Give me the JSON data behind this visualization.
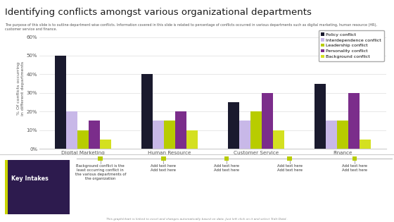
{
  "title": "Identifying conflicts amongst various organizational departments",
  "subtitle": "The purpose of this slide is to outline department wise conflicts. Information covered in this slide is related to percentage of conflicts occurred in various departments such as digital marketing, human resource (HR), customer service and finance.",
  "ylabel": "% Of conflicts occurring\nin different departments",
  "categories": [
    "Digital Marketing",
    "Human Resource",
    "Customer Service",
    "Finance"
  ],
  "series": {
    "Policy conflict": [
      50,
      40,
      25,
      35
    ],
    "Interdependence conflict": [
      20,
      15,
      15,
      15
    ],
    "Leadership conflict": [
      10,
      15,
      20,
      15
    ],
    "Personality conflict": [
      15,
      20,
      30,
      30
    ],
    "Background conflict": [
      5,
      10,
      10,
      5
    ]
  },
  "colors": {
    "Policy conflict": "#1a1a2e",
    "Interdependence conflict": "#c8b8e8",
    "Leadership conflict": "#b8cc00",
    "Personality conflict": "#7b2d8b",
    "Background conflict": "#d4e020"
  },
  "ylim": [
    0,
    65
  ],
  "yticks": [
    0,
    10,
    20,
    30,
    40,
    50,
    60
  ],
  "ytick_labels": [
    "0%",
    "10%",
    "20%",
    "30%",
    "40%",
    "50%",
    "60%"
  ],
  "footer_note": "This graph/chart is linked to excel and changes automatically based on data. Just left click on it and select 'Edit Data'.",
  "key_intakes_title": "Key Intakes",
  "key_intakes_text": "Background conflict is the\nleast occurring conflict in\nthe various departments of\nthe organization",
  "add_text_items": [
    "Add text here\nAdd text here",
    "Add text here\nAdd text here",
    "Add text here\nAdd text here",
    "Add text here\nAdd text here"
  ],
  "bg_color": "#ffffff",
  "chart_bg": "#ffffff",
  "key_intakes_bg": "#2d1b4e",
  "timeline_color": "#c8d400",
  "dot_color": "#b8cc00",
  "border_color": "#cccccc"
}
